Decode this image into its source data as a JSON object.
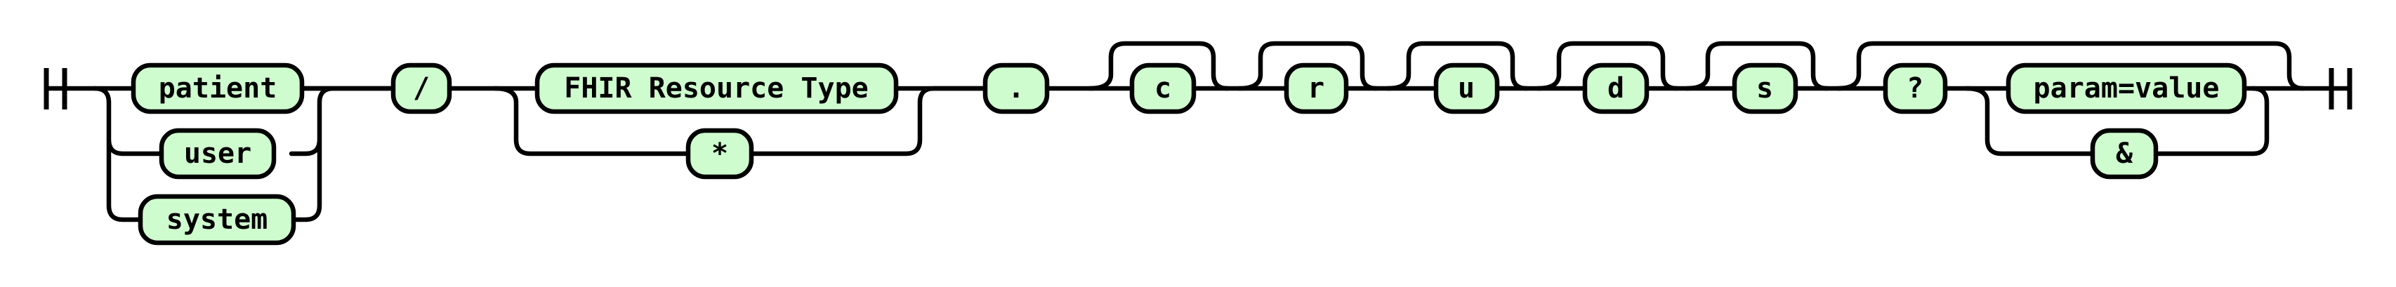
{
  "diagram": {
    "type": "railroad",
    "terminals": {
      "patient": "patient",
      "user": "user",
      "system": "system",
      "slash": "/",
      "resource_type": "FHIR Resource Type",
      "wildcard": "*",
      "dot": ".",
      "c": "c",
      "r": "r",
      "u": "u",
      "d": "d",
      "s": "s",
      "question": "?",
      "param": "param=value",
      "amp": "&"
    }
  }
}
